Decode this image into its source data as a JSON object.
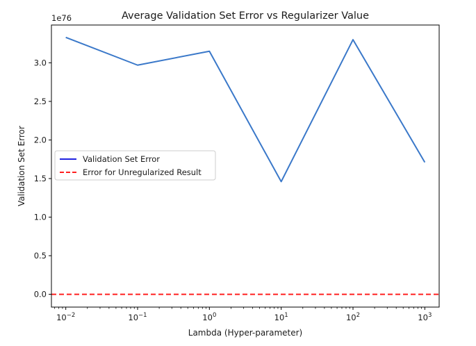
{
  "chart_data": {
    "type": "line",
    "title": "Average Validation Set Error vs Regularizer Value",
    "xlabel": "Lambda (Hyper-parameter)",
    "ylabel": "Validation Set Error",
    "y_offset_label": "1e76",
    "x_scale": "log",
    "x": [
      0.01,
      0.1,
      1,
      10,
      100,
      1000
    ],
    "x_tick_labels": [
      {
        "base": "10",
        "exp": "−2"
      },
      {
        "base": "10",
        "exp": "−1"
      },
      {
        "base": "10",
        "exp": "0"
      },
      {
        "base": "10",
        "exp": "1"
      },
      {
        "base": "10",
        "exp": "2"
      },
      {
        "base": "10",
        "exp": "3"
      }
    ],
    "y_ticks": [
      "0.0",
      "0.5",
      "1.0",
      "1.5",
      "2.0",
      "2.5",
      "3.0"
    ],
    "y_tick_values": [
      0.0,
      0.5,
      1.0,
      1.5,
      2.0,
      2.5,
      3.0
    ],
    "xlim": [
      0.00631,
      1585
    ],
    "ylim": [
      -0.166,
      3.49
    ],
    "grid": false,
    "legend": "center-left",
    "series": [
      {
        "name": "Validation Set Error",
        "style": "solid",
        "color": "#3a78c9",
        "legend_color": "#1f22e0",
        "values": [
          3.33,
          2.97,
          3.15,
          1.46,
          3.3,
          1.71
        ]
      },
      {
        "name": "Error for Unregularized Result",
        "style": "dashed",
        "color": "#ff2020",
        "constant": 0.0
      }
    ]
  }
}
